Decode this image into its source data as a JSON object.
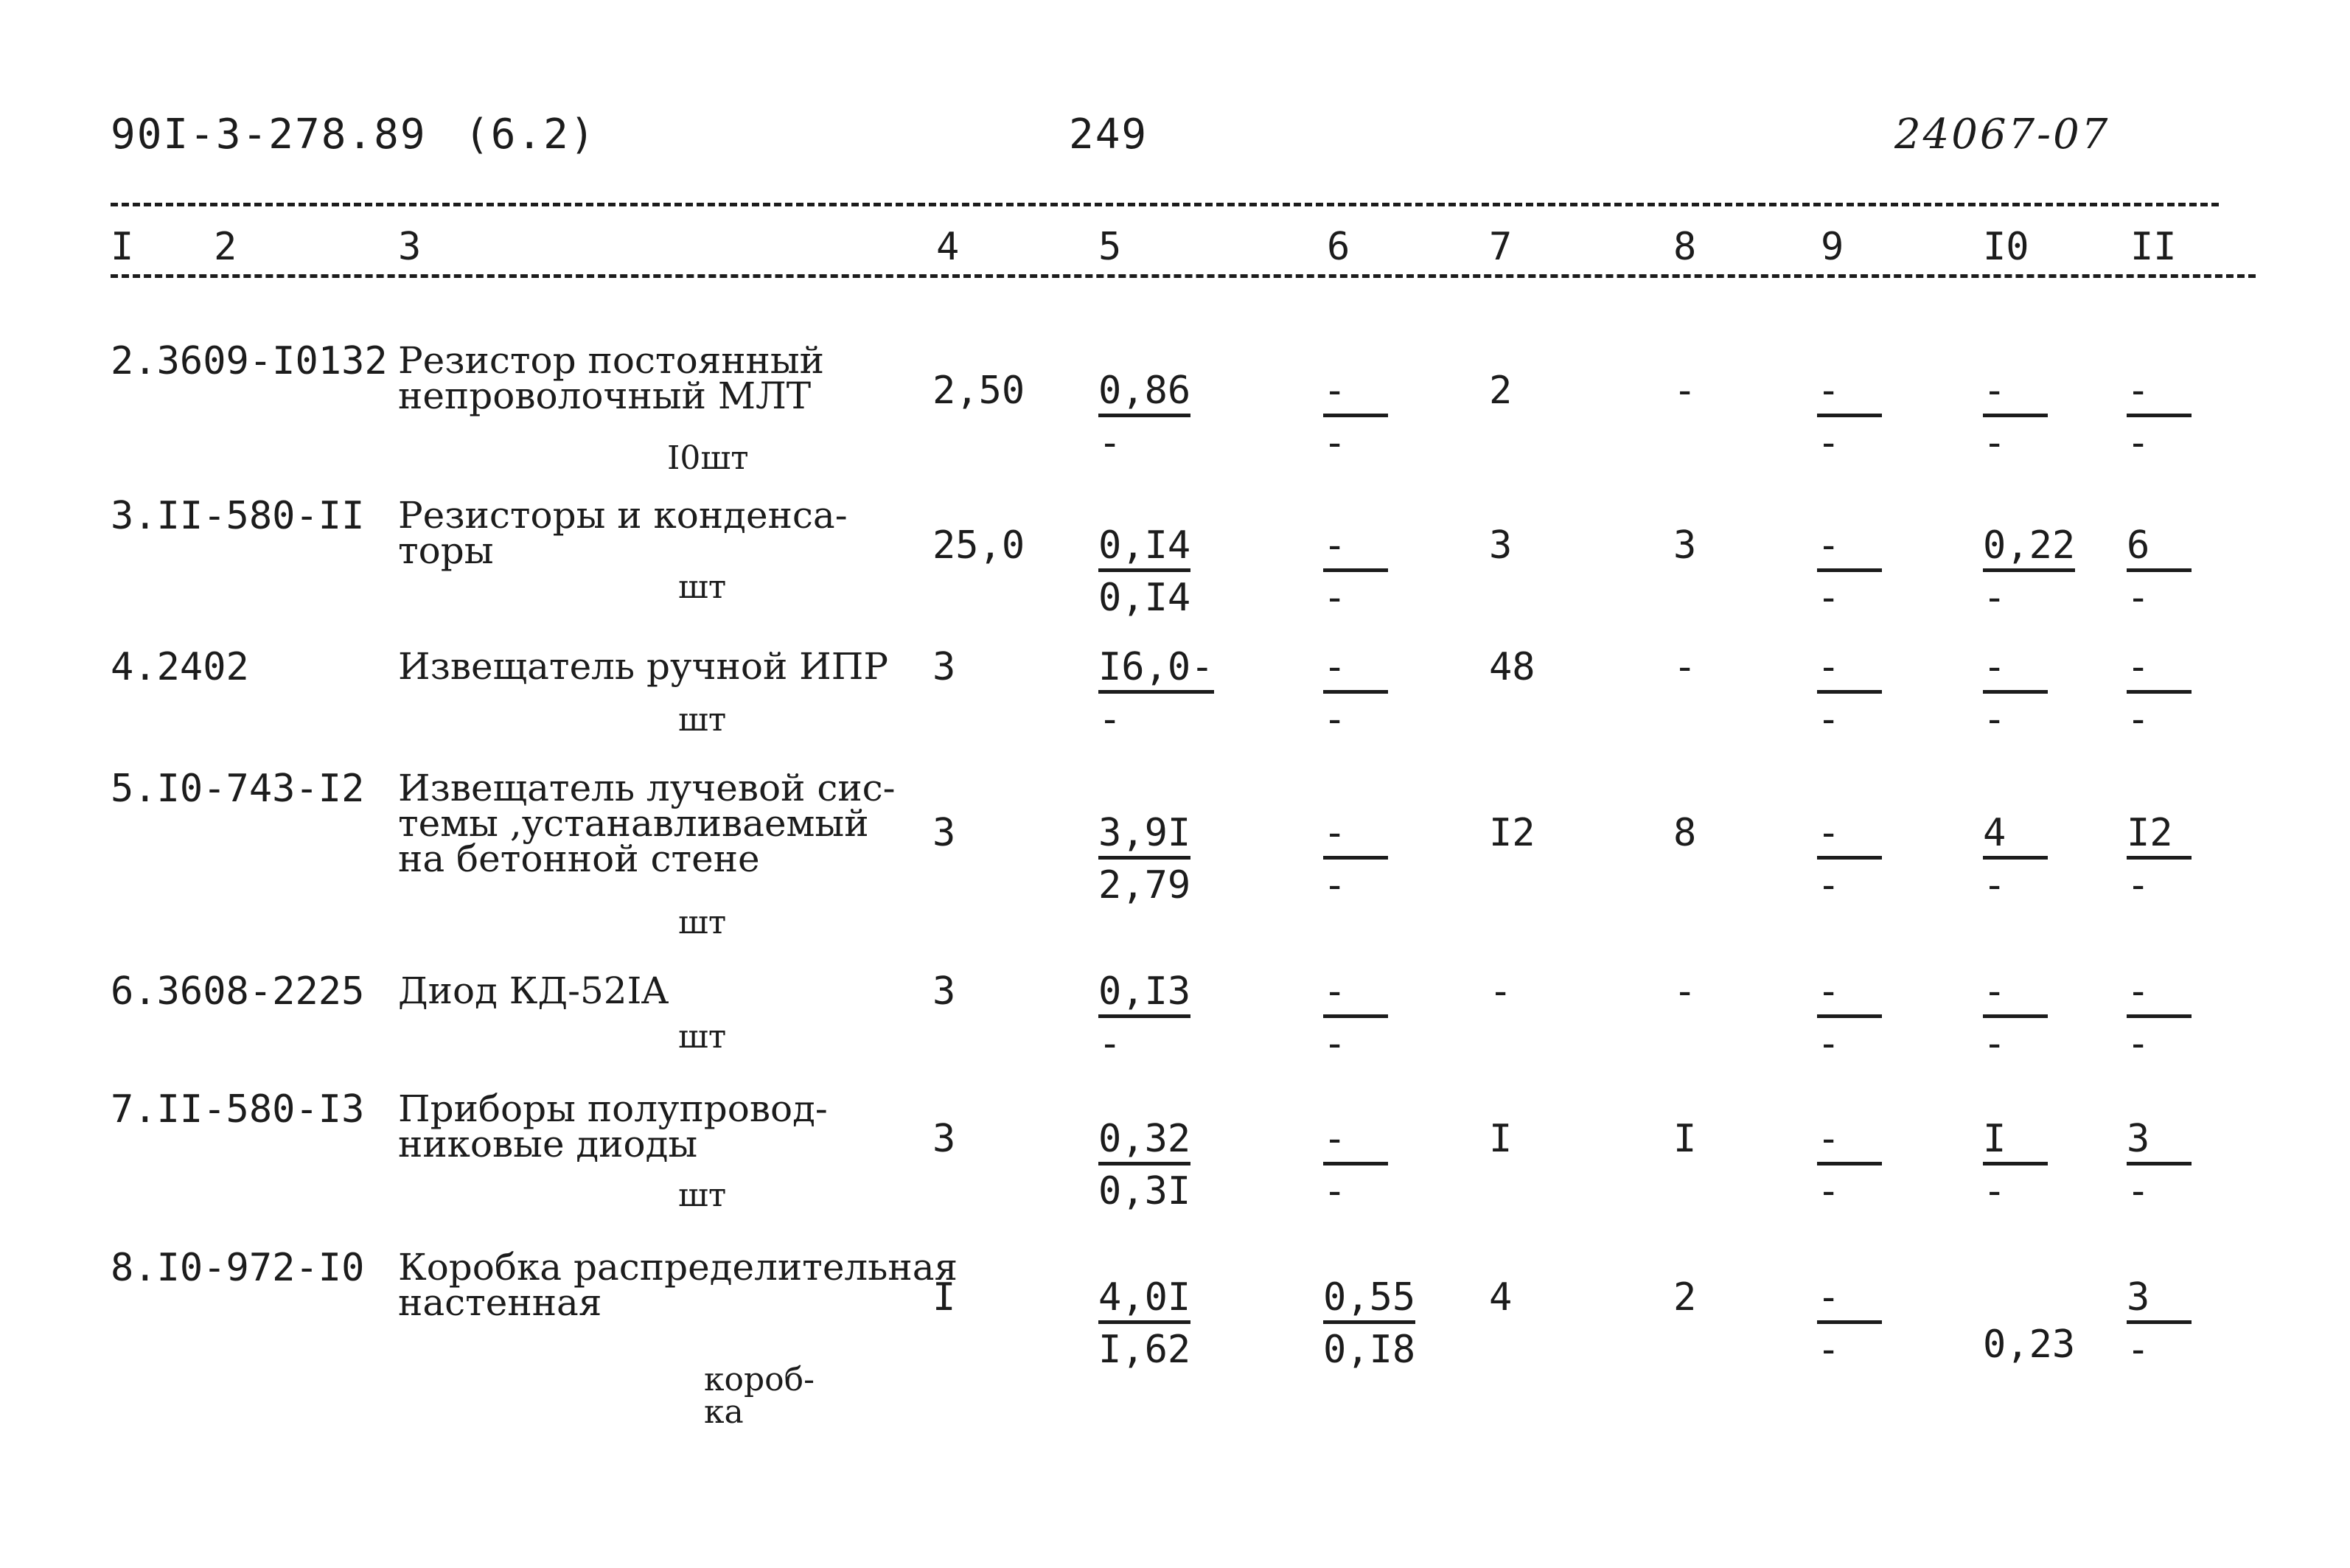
{
  "header": {
    "doc_code": "90I-3-278.89",
    "section": "(6.2)",
    "page_number": "249",
    "archive_no": "24067-07"
  },
  "columns": [
    "I",
    "2",
    "3",
    "4",
    "5",
    "6",
    "7",
    "8",
    "9",
    "I0",
    "II"
  ],
  "rows": [
    {
      "code": "2.3609-I0132",
      "name": [
        "Резистор постоянный",
        "непроволочный МЛТ"
      ],
      "unit": "I0шт",
      "c4": "2,50",
      "c5": {
        "top": "0,86",
        "bottom": "-"
      },
      "c6": {
        "top": "-",
        "bottom": "-"
      },
      "c7": "2",
      "c8": "-",
      "c9": {
        "top": "-",
        "bottom": "-"
      },
      "c10": {
        "top": "-",
        "bottom": "-"
      },
      "c11": {
        "top": "-",
        "bottom": "-"
      }
    },
    {
      "code": "3.II-580-II",
      "name": [
        "Резисторы и конденса-",
        "торы"
      ],
      "unit": "шт",
      "c4": "25,0",
      "c5": {
        "top": "0,I4",
        "bottom": "0,I4"
      },
      "c6": {
        "top": "-",
        "bottom": "-"
      },
      "c7": "3",
      "c8": "3",
      "c9": {
        "top": "-",
        "bottom": "-"
      },
      "c10": {
        "top": "0,22",
        "bottom": "-"
      },
      "c11": {
        "top": "6",
        "bottom": "-"
      }
    },
    {
      "code": "4.2402",
      "name": [
        "Извещатель ручной ИПР"
      ],
      "unit": "шт",
      "c4": "3",
      "c5": {
        "top": "I6,0-",
        "bottom": "-"
      },
      "c6": {
        "top": "-",
        "bottom": "-"
      },
      "c7": "48",
      "c8": "-",
      "c9": {
        "top": "-",
        "bottom": "-"
      },
      "c10": {
        "top": "-",
        "bottom": "-"
      },
      "c11": {
        "top": "-",
        "bottom": "-"
      }
    },
    {
      "code": "5.I0-743-I2",
      "name": [
        "Извещатель лучевой сис-",
        "темы ,устанавливаемый",
        "на бетонной стене"
      ],
      "unit": "шт",
      "c4": "3",
      "c5": {
        "top": "3,9I",
        "bottom": "2,79"
      },
      "c6": {
        "top": "-",
        "bottom": "-"
      },
      "c7": "I2",
      "c8": "8",
      "c9": {
        "top": "-",
        "bottom": "-"
      },
      "c10": {
        "top": "4",
        "bottom": "-"
      },
      "c11": {
        "top": "I2",
        "bottom": "-"
      }
    },
    {
      "code": "6.3608-2225",
      "name": [
        "Диод КД-52IA"
      ],
      "unit": "шт",
      "c4": "3",
      "c5": {
        "top": "0,I3",
        "bottom": "-"
      },
      "c6": {
        "top": "-",
        "bottom": "-"
      },
      "c7": "-",
      "c8": "-",
      "c9": {
        "top": "-",
        "bottom": "-"
      },
      "c10": {
        "top": "-",
        "bottom": "-"
      },
      "c11": {
        "top": "-",
        "bottom": "-"
      }
    },
    {
      "code": "7.II-580-I3",
      "name": [
        "Приборы полупровод-",
        "никовые  диоды"
      ],
      "unit": "шт",
      "c4": "3",
      "c5": {
        "top": "0,32",
        "bottom": "0,3I"
      },
      "c6": {
        "top": "-",
        "bottom": "-"
      },
      "c7": "I",
      "c8": "I",
      "c9": {
        "top": "-",
        "bottom": "-"
      },
      "c10": {
        "top": "I",
        "bottom": "-"
      },
      "c11": {
        "top": "3",
        "bottom": "-"
      }
    },
    {
      "code": "8.I0-972-I0",
      "name": [
        "Коробка распределительная",
        "настенная"
      ],
      "unit": "короб-\nка",
      "c4": "I",
      "c5": {
        "top": "4,0I",
        "bottom": "I,62"
      },
      "c6": {
        "top": "0,55",
        "bottom": "0,I8"
      },
      "c7": "4",
      "c8": "2",
      "c9": {
        "top": "-",
        "bottom": "-"
      },
      "c10": {
        "top": "",
        "bottom": "0,23"
      },
      "c11": {
        "top": "3",
        "bottom": "-"
      }
    }
  ]
}
